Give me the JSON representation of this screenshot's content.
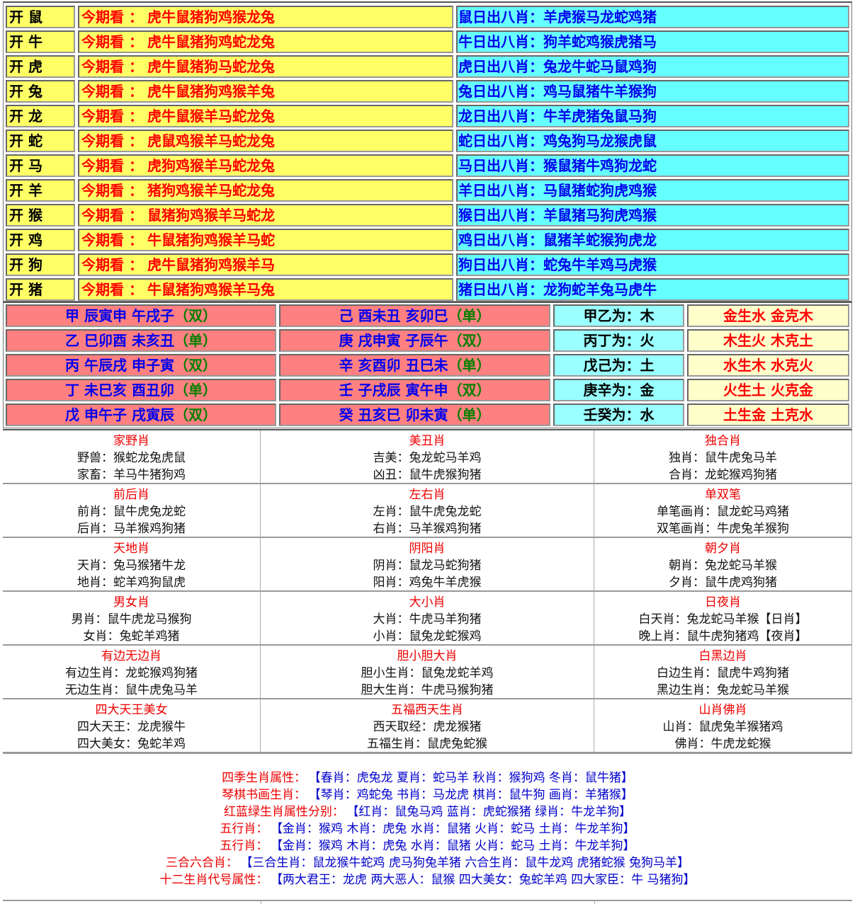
{
  "kai_table": {
    "prefix": "今期看 ：",
    "rows": [
      {
        "open": "开 鼠",
        "picks": "虎牛鼠猪狗鸡猴龙兔",
        "day": "鼠日出八肖：羊虎猴马龙蛇鸡猪"
      },
      {
        "open": "开 牛",
        "picks": "虎牛鼠猪狗鸡蛇龙兔",
        "day": "牛日出八肖：狗羊蛇鸡猴虎猪马"
      },
      {
        "open": "开 虎",
        "picks": "虎牛鼠猪狗马蛇龙兔",
        "day": "虎日出八肖：兔龙牛蛇马鼠鸡狗"
      },
      {
        "open": "开 兔",
        "picks": "虎牛鼠猪狗鸡猴羊兔",
        "day": "兔日出八肖：鸡马鼠猪牛羊猴狗"
      },
      {
        "open": "开 龙",
        "picks": "虎牛鼠猴羊马蛇龙兔",
        "day": "龙日出八肖：牛羊虎猪兔鼠马狗"
      },
      {
        "open": "开 蛇",
        "picks": "虎鼠鸡猴羊马蛇龙兔",
        "day": "蛇日出八肖：鸡兔狗马龙猴虎鼠"
      },
      {
        "open": "开 马",
        "picks": "虎狗鸡猴羊马蛇龙兔",
        "day": "马日出八肖：猴鼠猪牛鸡狗龙蛇"
      },
      {
        "open": "开 羊",
        "picks": "猪狗鸡猴羊马蛇龙兔",
        "day": "羊日出八肖：马鼠猪蛇狗虎鸡猴"
      },
      {
        "open": "开 猴",
        "picks": "鼠猪狗鸡猴羊马蛇龙",
        "day": "猴日出八肖：羊鼠猪马狗虎鸡猴"
      },
      {
        "open": "开 鸡",
        "picks": "牛鼠猪狗鸡猴羊马蛇",
        "day": "鸡日出八肖：鼠猪羊蛇猴狗虎龙"
      },
      {
        "open": "开 狗",
        "picks": "虎牛鼠猪狗鸡猴羊马",
        "day": "狗日出八肖：蛇兔牛羊鸡马虎猴"
      },
      {
        "open": "开 猪",
        "picks": "牛鼠猪狗鸡猴羊马兔",
        "day": "猪日出八肖：龙狗蛇羊兔马虎牛"
      }
    ]
  },
  "stem_table": {
    "rows": [
      {
        "a": "甲 辰寅申 午戌子",
        "a_tag": "（双）",
        "b": "己 酉未丑 亥卯巳",
        "b_tag": "（单）",
        "c": "甲乙为：木",
        "d": "金生水 金克木"
      },
      {
        "a": "乙 巳卯酉 未亥丑",
        "a_tag": "（单）",
        "b": "庚 戌申寅 子辰午",
        "b_tag": "（双）",
        "c": "丙丁为：火",
        "d": "木生火 木克土"
      },
      {
        "a": "丙 午辰戌 申子寅",
        "a_tag": "（双）",
        "b": "辛 亥酉卯 丑巳未",
        "b_tag": "（单）",
        "c": "戊己为：土",
        "d": "水生木 水克火"
      },
      {
        "a": "丁 未巳亥 酉丑卯",
        "a_tag": "（单）",
        "b": "壬 子戌辰 寅午申",
        "b_tag": "（双）",
        "c": "庚辛为：金",
        "d": "火生土 火克金"
      },
      {
        "a": "戊 申午子 戌寅辰",
        "a_tag": "（双）",
        "b": "癸 丑亥巳 卯未寅",
        "b_tag": "（单）",
        "c": "壬癸为：水",
        "d": "土生金 土克水"
      }
    ]
  },
  "groups": [
    [
      {
        "title": "家野肖",
        "lines": [
          "野兽：猴蛇龙兔虎鼠",
          "家畜：羊马牛猪狗鸡"
        ]
      },
      {
        "title": "美丑肖",
        "lines": [
          "吉美：兔龙蛇马羊鸡",
          "凶丑：鼠牛虎猴狗猪"
        ]
      },
      {
        "title": "独合肖",
        "lines": [
          "独肖：鼠牛虎兔马羊",
          "合肖：龙蛇猴鸡狗猪"
        ]
      }
    ],
    [
      {
        "title": "前后肖",
        "lines": [
          "前肖：鼠牛虎兔龙蛇",
          "后肖：马羊猴鸡狗猪"
        ]
      },
      {
        "title": "左右肖",
        "lines": [
          "左肖：鼠牛虎兔龙蛇",
          "右肖：马羊猴鸡狗猪"
        ]
      },
      {
        "title": "单双笔",
        "lines": [
          "单笔画肖：鼠龙蛇马鸡猪",
          "双笔画肖：牛虎兔羊猴狗"
        ]
      }
    ],
    [
      {
        "title": "天地肖",
        "lines": [
          "天肖：兔马猴猪牛龙",
          "地肖：蛇羊鸡狗鼠虎"
        ]
      },
      {
        "title": "阴阳肖",
        "lines": [
          "阴肖：鼠龙马蛇狗猪",
          "阳肖：鸡兔牛羊虎猴"
        ]
      },
      {
        "title": "朝夕肖",
        "lines": [
          "朝肖：兔龙蛇马羊猴",
          "夕肖：鼠牛虎鸡狗猪"
        ]
      }
    ],
    [
      {
        "title": "男女肖",
        "lines": [
          "男肖：鼠牛虎龙马猴狗",
          "女肖：兔蛇羊鸡猪"
        ]
      },
      {
        "title": "大小肖",
        "lines": [
          "大肖：牛虎马羊狗猪",
          "小肖：鼠兔龙蛇猴鸡"
        ]
      },
      {
        "title": "日夜肖",
        "lines": [
          "白天肖：兔龙蛇马羊猴【日肖】",
          "晚上肖：鼠牛虎狗猪鸡【夜肖】"
        ]
      }
    ],
    [
      {
        "title": "有边无边肖",
        "lines": [
          "有边生肖：龙蛇猴鸡狗猪",
          "无边生肖：鼠牛虎兔马羊"
        ]
      },
      {
        "title": "胆小胆大肖",
        "lines": [
          "胆小生肖：鼠兔龙蛇羊鸡",
          "胆大生肖：牛虎马猴狗猪"
        ]
      },
      {
        "title": "白黑边肖",
        "lines": [
          "白边生肖：鼠虎牛鸡狗猪",
          "黑边生肖：兔龙蛇马羊猴"
        ]
      }
    ],
    [
      {
        "title": "四大天王美女",
        "lines": [
          "四大天王：龙虎猴牛",
          "四大美女：兔蛇羊鸡"
        ]
      },
      {
        "title": "五福西天生肖",
        "lines": [
          "西天取经：虎龙猴猪",
          "五福生肖：鼠虎兔蛇猴"
        ]
      },
      {
        "title": "山肖佛肖",
        "lines": [
          "山肖：鼠虎兔羊猴猪鸡",
          "佛肖：牛虎龙蛇猴"
        ]
      }
    ]
  ],
  "attributes": [
    {
      "key": "四季生肖属性：",
      "value": "【春肖：虎兔龙 夏肖：蛇马羊 秋肖：猴狗鸡 冬肖：鼠牛猪】"
    },
    {
      "key": "琴棋书画生肖：",
      "value": "【琴肖：鸡蛇兔 书肖：马龙虎 棋肖：鼠牛狗 画肖：羊猪猴】"
    },
    {
      "key": "红蓝绿生肖属性分别：",
      "value": "【红肖：鼠兔马鸡 蓝肖：虎蛇猴猪 绿肖：牛龙羊狗】"
    },
    {
      "key": "五行肖：",
      "value": "【金肖：猴鸡 木肖：虎兔 水肖：鼠猪 火肖：蛇马 土肖：牛龙羊狗】"
    },
    {
      "key": "五行肖：",
      "value": "【金肖：猴鸡 木肖：虎兔 水肖：鼠猪 火肖：蛇马 土肖：牛龙羊狗】"
    },
    {
      "key": "三合六合肖：",
      "value": "【三合生肖：鼠龙猴牛蛇鸡 虎马狗兔羊猪 六合生肖：鼠牛龙鸡 虎猪蛇猴 兔狗马羊】"
    },
    {
      "key": "十二生肖代号属性：",
      "value": "【两大君王：龙虎 两大恶人：鼠猴 四大美女：兔蛇羊鸡 四大家臣：牛 马猪狗】"
    }
  ],
  "colors": {
    "yellow": "#ffff66",
    "cyan": "#66ffff",
    "pink": "#ff8080",
    "light_cyan": "#99ffff",
    "cream": "#ffffcc",
    "red": "#ff0000",
    "blue": "#0000ee",
    "green": "#008000"
  }
}
